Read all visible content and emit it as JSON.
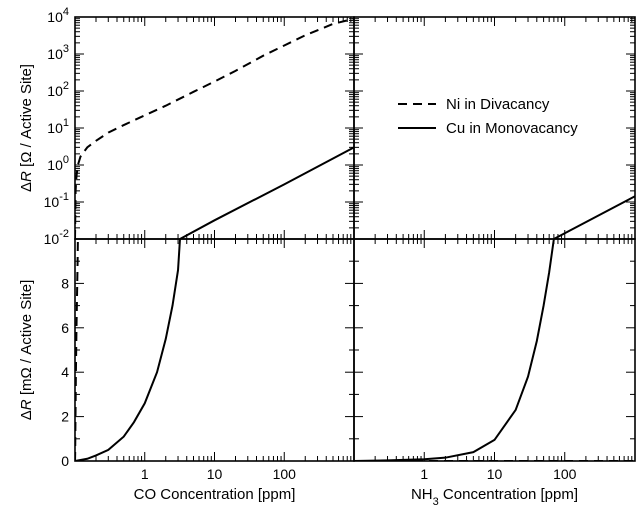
{
  "chart_data": [
    {
      "panel": "top-left",
      "type": "line",
      "xlabel": "",
      "ylabel": "ΔR [Ω / Active Site]",
      "xscale": "log",
      "yscale": "log",
      "xlim": [
        0.1,
        1000
      ],
      "ylim": [
        0.01,
        10000
      ],
      "yticklabels_base": "10",
      "yticklabels_exp": [
        "-2",
        "-1",
        "0",
        "1",
        "2",
        "3",
        "4"
      ],
      "grid": false,
      "legend": "none",
      "series": [
        {
          "name": "Ni in Divacancy",
          "style": "dashed",
          "x": [
            0.1,
            0.102,
            0.105,
            0.11,
            0.12,
            0.15,
            0.2,
            0.3,
            0.5,
            1,
            2,
            5,
            10,
            20,
            50,
            100,
            200,
            500,
            1000
          ],
          "y": [
            0.01,
            0.2,
            0.5,
            1.0,
            1.7,
            3.0,
            4.5,
            7.5,
            12,
            22,
            40,
            95,
            180,
            350,
            900,
            1700,
            3200,
            6500,
            9000
          ]
        },
        {
          "name": "Cu in Monovacancy",
          "style": "solid",
          "x": [
            3.2,
            10,
            100,
            1000
          ],
          "y": [
            0.01,
            0.032,
            0.3,
            3.0
          ]
        }
      ]
    },
    {
      "panel": "top-right",
      "type": "line",
      "xlabel": "",
      "ylabel": "",
      "xscale": "log",
      "yscale": "log",
      "xlim": [
        0.1,
        1000
      ],
      "ylim": [
        0.01,
        10000
      ],
      "grid": false,
      "legend": "center-right",
      "series": [
        {
          "name": "Ni in Divacancy",
          "style": "dashed",
          "x": [],
          "y": []
        },
        {
          "name": "Cu in Monovacancy",
          "style": "solid",
          "x": [
            70,
            100,
            1000
          ],
          "y": [
            0.01,
            0.0143,
            0.143
          ]
        }
      ]
    },
    {
      "panel": "bottom-left",
      "type": "line",
      "xlabel": "CO Concentration [ppm]",
      "ylabel": "ΔR [mΩ / Active Site]",
      "xscale": "log",
      "yscale": "linear",
      "xlim": [
        0.1,
        1000
      ],
      "ylim": [
        0,
        10
      ],
      "xticklabels": [
        "1",
        "10",
        "100"
      ],
      "yticklabels": [
        "0",
        "2",
        "4",
        "6",
        "8"
      ],
      "grid": false,
      "legend": "none",
      "series": [
        {
          "name": "Ni in Divacancy",
          "style": "dashed",
          "x": [
            0.1,
            0.1005,
            0.101,
            0.102,
            0.103,
            0.105,
            0.107,
            0.109,
            0.11
          ],
          "y": [
            0,
            0.3,
            1.0,
            2.5,
            4.0,
            6.0,
            7.5,
            9.0,
            10
          ]
        },
        {
          "name": "Cu in Monovacancy",
          "style": "solid",
          "x": [
            0.1,
            0.15,
            0.2,
            0.3,
            0.5,
            0.7,
            1,
            1.5,
            2,
            2.5,
            3,
            3.2
          ],
          "y": [
            0,
            0.1,
            0.25,
            0.5,
            1.1,
            1.75,
            2.6,
            4.0,
            5.5,
            7.0,
            8.6,
            10
          ]
        }
      ]
    },
    {
      "panel": "bottom-right",
      "type": "line",
      "xlabel": "NH3 Concentration [ppm]",
      "xlabel_parts": [
        "NH",
        "3",
        " Concentration [ppm]"
      ],
      "ylabel": "",
      "xscale": "log",
      "yscale": "linear",
      "xlim": [
        0.1,
        1000
      ],
      "ylim": [
        0,
        10
      ],
      "xticklabels": [
        "1",
        "10",
        "100"
      ],
      "grid": false,
      "legend": "none",
      "series": [
        {
          "name": "Ni in Divacancy",
          "style": "dashed",
          "x": [
            0.1,
            1000
          ],
          "y": [
            0,
            0
          ]
        },
        {
          "name": "Cu in Monovacancy",
          "style": "solid",
          "x": [
            0.1,
            0.3,
            1,
            2,
            5,
            10,
            20,
            30,
            40,
            50,
            60,
            70
          ],
          "y": [
            0,
            0.03,
            0.08,
            0.15,
            0.4,
            0.95,
            2.3,
            3.8,
            5.4,
            7.0,
            8.5,
            10
          ]
        }
      ]
    }
  ],
  "legend": {
    "entries": [
      {
        "label": "Ni in Divacancy",
        "style": "dashed"
      },
      {
        "label": "Cu in Monovacancy",
        "style": "solid"
      }
    ]
  },
  "colors": {
    "line": "#000000",
    "background": "#ffffff"
  }
}
